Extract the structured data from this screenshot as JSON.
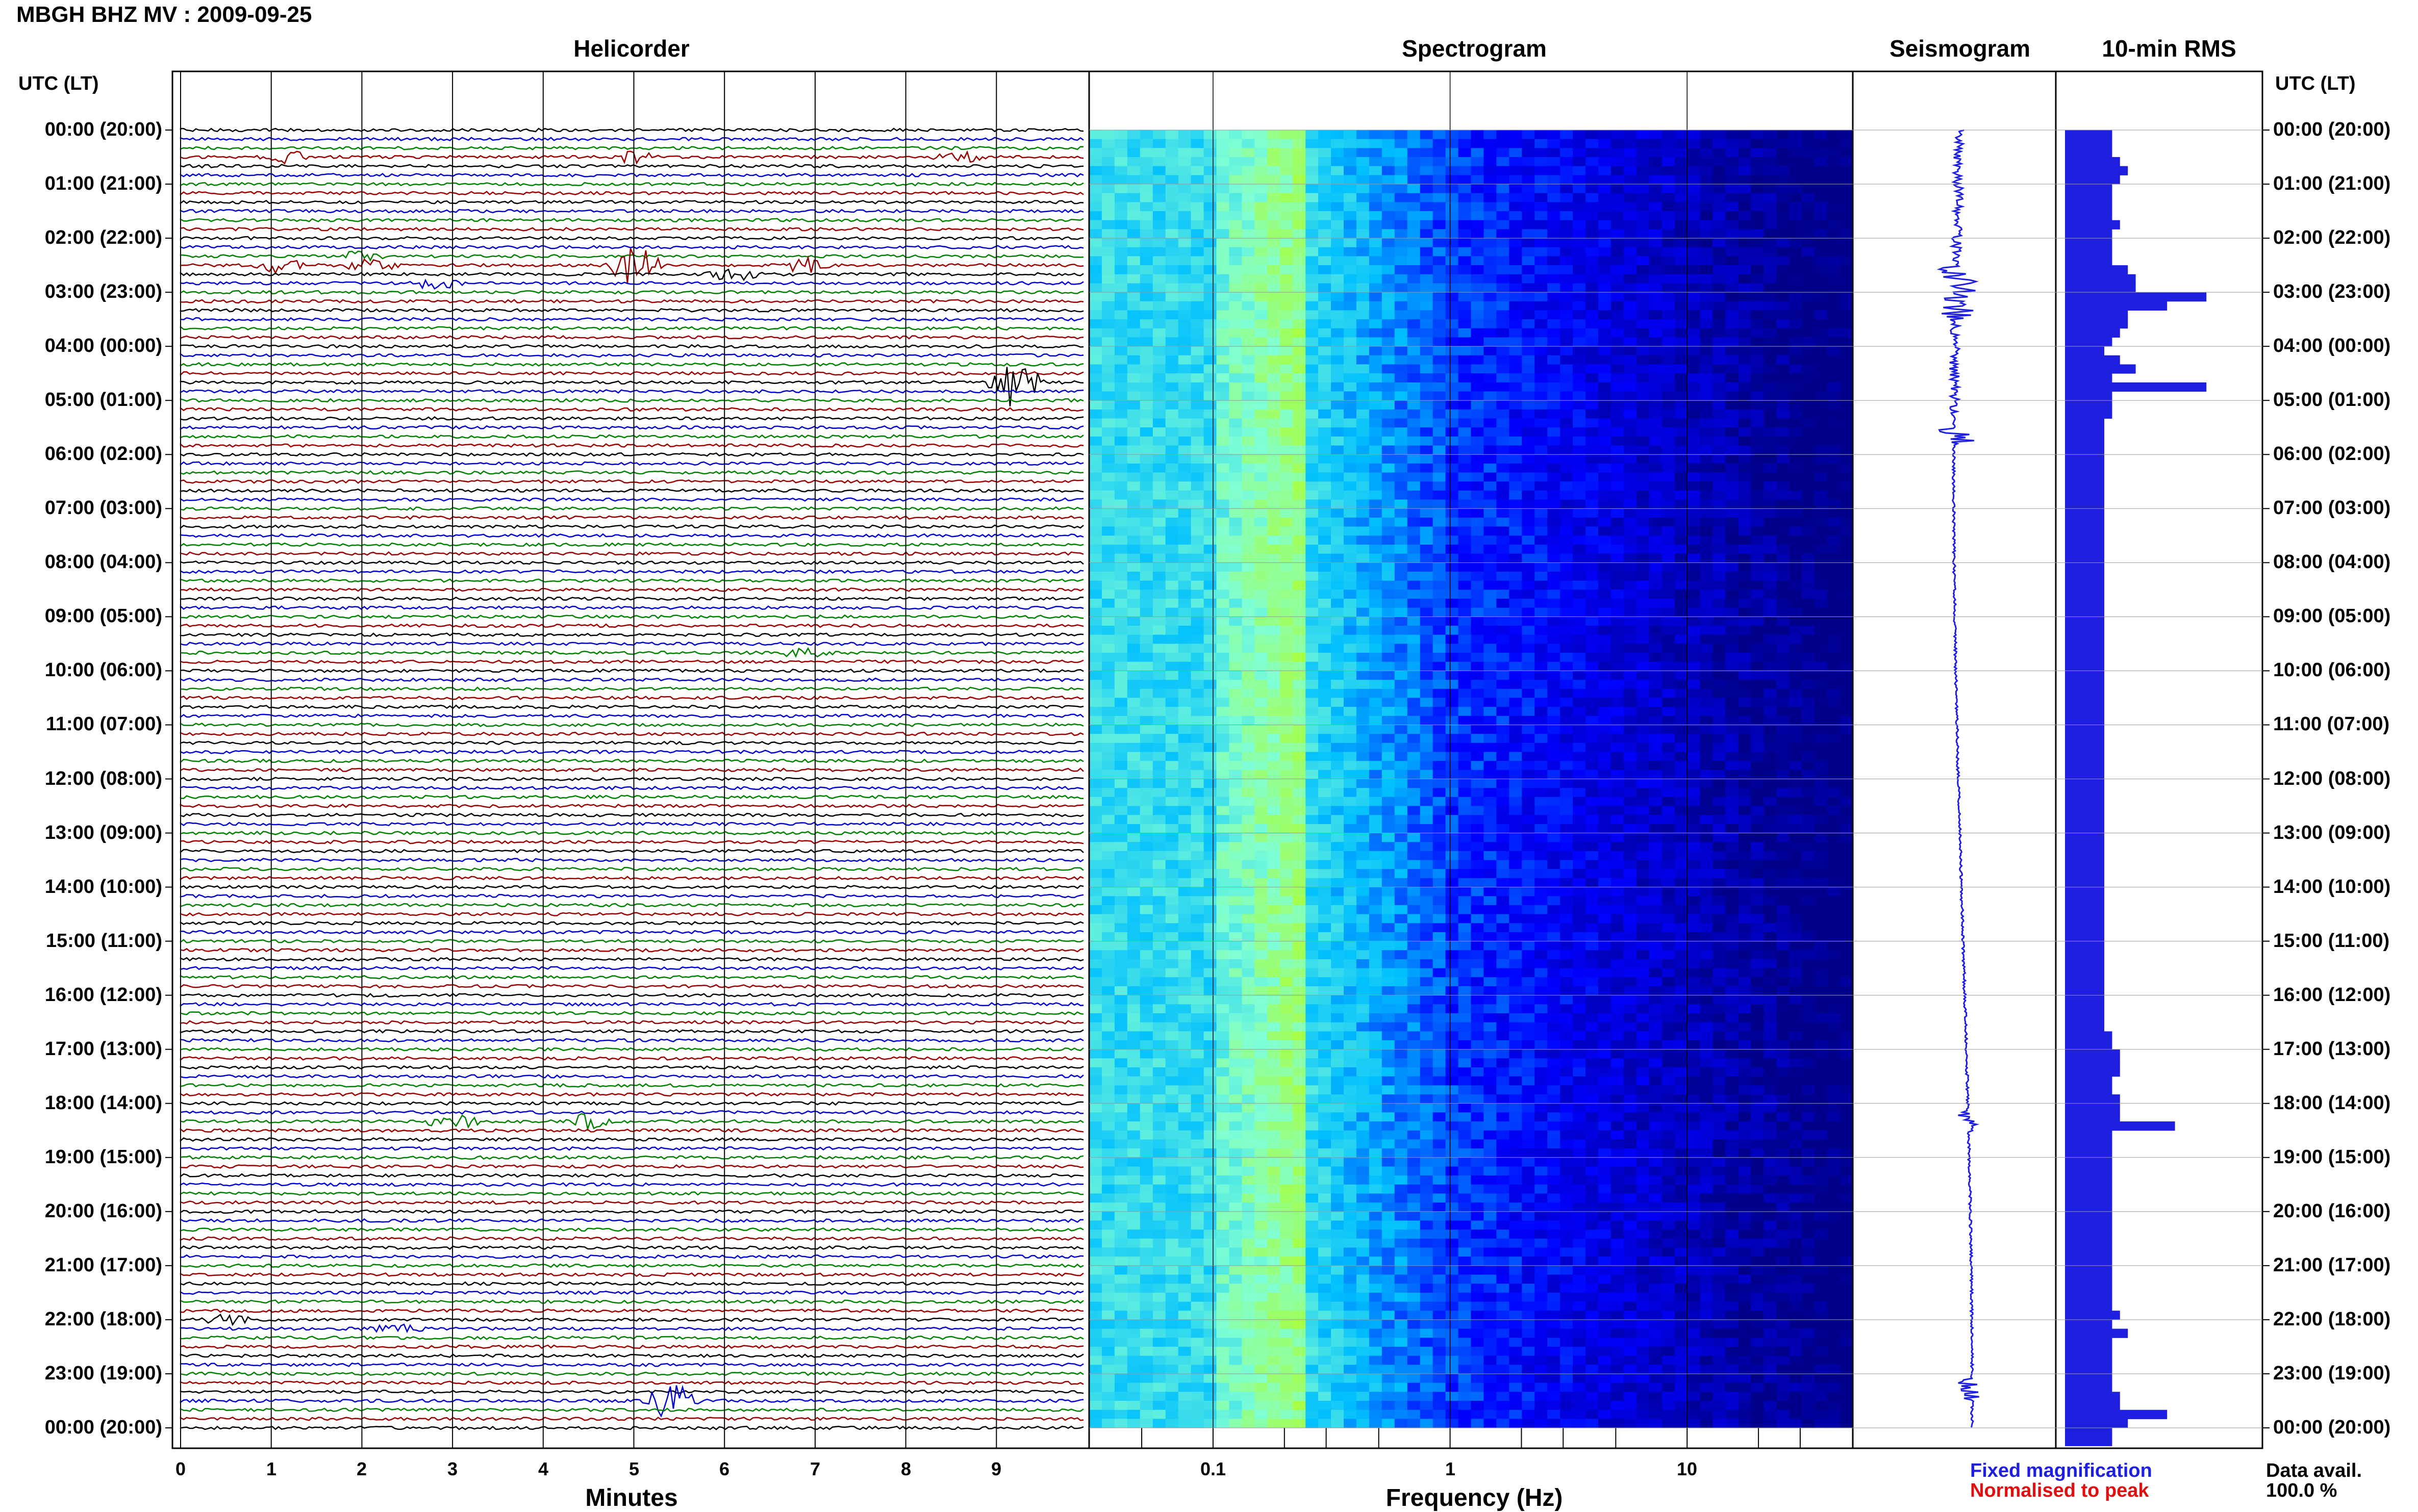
{
  "header": {
    "station_title": "MBGH BHZ MV : 2009-09-25"
  },
  "panels": {
    "helicorder": "Helicorder",
    "spectrogram": "Spectrogram",
    "seismogram": "Seismogram",
    "rms": "10-min RMS"
  },
  "axes": {
    "utc_header_left": "UTC (LT)",
    "utc_header_right": "UTC (LT)",
    "minutes_label": "Minutes",
    "frequency_label": "Frequency (Hz)",
    "minute_ticks": [
      "0",
      "1",
      "2",
      "3",
      "4",
      "5",
      "6",
      "7",
      "8",
      "9"
    ],
    "frequency_ticks": [
      "0.1",
      "1",
      "10"
    ]
  },
  "legend": {
    "fixed_magnification": "Fixed magnification",
    "normalised_to_peak": "Normalised to peak",
    "fixed_color": "#1f1fe0",
    "normalised_color": "#e01010"
  },
  "footer": {
    "data_avail_label": "Data avail.",
    "data_avail_value": "100.0 %"
  },
  "chart_data": [
    {
      "type": "line",
      "title": "Helicorder",
      "xlabel": "Minutes",
      "xlim": [
        0,
        10
      ],
      "line_colors": [
        "#000000",
        "#0000cc",
        "#008000",
        "#990000"
      ],
      "time_labels": [
        "00:00 (20:00)",
        "01:00 (21:00)",
        "02:00 (22:00)",
        "03:00 (23:00)",
        "04:00 (00:00)",
        "05:00 (01:00)",
        "06:00 (02:00)",
        "07:00 (03:00)",
        "08:00 (04:00)",
        "09:00 (05:00)",
        "10:00 (06:00)",
        "11:00 (07:00)",
        "12:00 (08:00)",
        "13:00 (09:00)",
        "14:00 (10:00)",
        "15:00 (11:00)",
        "16:00 (12:00)",
        "17:00 (13:00)",
        "18:00 (14:00)",
        "19:00 (15:00)",
        "20:00 (16:00)",
        "21:00 (17:00)",
        "22:00 (18:00)",
        "23:00 (19:00)",
        "00:00 (20:00)"
      ],
      "events": [
        {
          "row": 3,
          "minute": 8.6,
          "amp": 1.0
        },
        {
          "row": 3,
          "minute": 1.2,
          "amp": 1.2
        },
        {
          "row": 3,
          "minute": 5.0,
          "amp": 1.1
        },
        {
          "row": 14,
          "minute": 2.0,
          "amp": 1.0
        },
        {
          "row": 15,
          "minute": 5.0,
          "amp": 5.0
        },
        {
          "row": 15,
          "minute": 1.1,
          "amp": 1.5
        },
        {
          "row": 15,
          "minute": 2.1,
          "amp": 1.5
        },
        {
          "row": 15,
          "minute": 6.9,
          "amp": 1.5
        },
        {
          "row": 16,
          "minute": 6.1,
          "amp": 1.3
        },
        {
          "row": 17,
          "minute": 2.8,
          "amp": 1.2
        },
        {
          "row": 28,
          "minute": 9.2,
          "amp": 6.0
        },
        {
          "row": 58,
          "minute": 6.9,
          "amp": 1.1
        },
        {
          "row": 110,
          "minute": 3.0,
          "amp": 2.0
        },
        {
          "row": 110,
          "minute": 4.5,
          "amp": 2.0
        },
        {
          "row": 132,
          "minute": 0.5,
          "amp": 1.0
        },
        {
          "row": 133,
          "minute": 2.4,
          "amp": 1.0
        },
        {
          "row": 141,
          "minute": 5.4,
          "amp": 4.0
        }
      ]
    },
    {
      "type": "heatmap",
      "title": "Spectrogram",
      "xlabel": "Frequency (Hz)",
      "x_scale": "log",
      "xlim": [
        0.03,
        50
      ],
      "x_ticks": [
        0.1,
        1,
        10
      ],
      "colormap": [
        "#00008b",
        "#0000ff",
        "#00bfff",
        "#7fffd4",
        "#adff2f"
      ]
    },
    {
      "type": "line",
      "title": "Seismogram",
      "color": "#1f1fe0"
    },
    {
      "type": "bar",
      "title": "10-min RMS",
      "orientation": "horizontal",
      "color": "#1f1fe0",
      "values": [
        0.06,
        0.06,
        0.06,
        0.07,
        0.08,
        0.07,
        0.06,
        0.06,
        0.06,
        0.06,
        0.07,
        0.06,
        0.06,
        0.06,
        0.06,
        0.08,
        0.09,
        0.09,
        0.18,
        0.13,
        0.08,
        0.08,
        0.07,
        0.06,
        0.05,
        0.07,
        0.09,
        0.06,
        0.18,
        0.06,
        0.06,
        0.06,
        0.05,
        0.05,
        0.05,
        0.05,
        0.05,
        0.05,
        0.05,
        0.05,
        0.05,
        0.05,
        0.05,
        0.05,
        0.05,
        0.05,
        0.05,
        0.05,
        0.05,
        0.05,
        0.05,
        0.05,
        0.05,
        0.05,
        0.05,
        0.05,
        0.05,
        0.05,
        0.05,
        0.05,
        0.05,
        0.05,
        0.05,
        0.05,
        0.05,
        0.05,
        0.05,
        0.05,
        0.05,
        0.05,
        0.05,
        0.05,
        0.05,
        0.05,
        0.05,
        0.05,
        0.05,
        0.05,
        0.05,
        0.05,
        0.05,
        0.05,
        0.05,
        0.05,
        0.05,
        0.05,
        0.05,
        0.05,
        0.05,
        0.05,
        0.05,
        0.05,
        0.05,
        0.05,
        0.05,
        0.05,
        0.05,
        0.05,
        0.05,
        0.05,
        0.06,
        0.06,
        0.07,
        0.07,
        0.07,
        0.06,
        0.06,
        0.07,
        0.07,
        0.07,
        0.14,
        0.06,
        0.06,
        0.06,
        0.06,
        0.06,
        0.06,
        0.06,
        0.06,
        0.06,
        0.06,
        0.06,
        0.06,
        0.06,
        0.06,
        0.06,
        0.06,
        0.06,
        0.06,
        0.06,
        0.06,
        0.07,
        0.06,
        0.08,
        0.06,
        0.06,
        0.06,
        0.06,
        0.06,
        0.06,
        0.07,
        0.07,
        0.13,
        0.08,
        0.06,
        0.06
      ]
    }
  ]
}
